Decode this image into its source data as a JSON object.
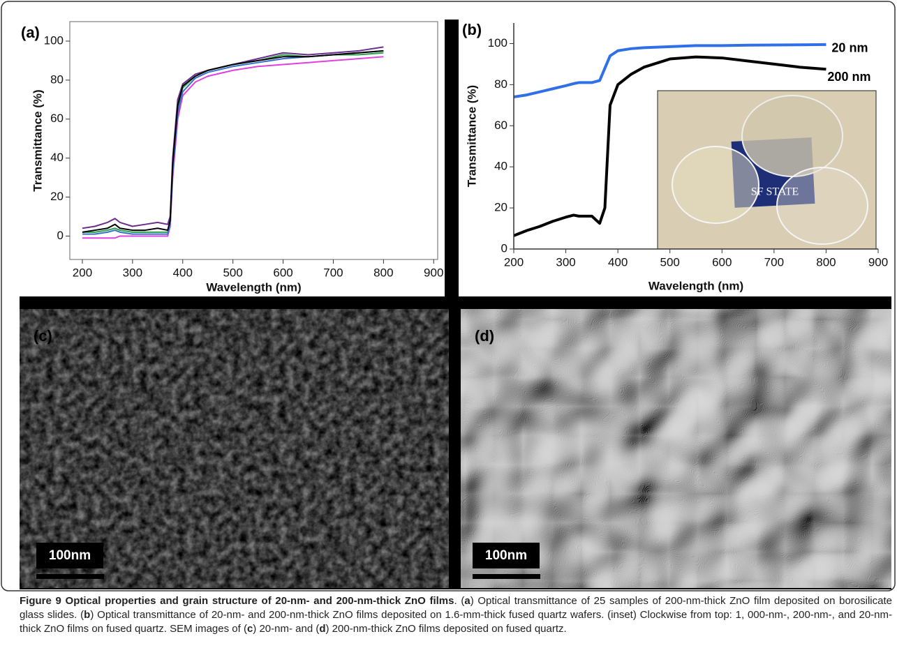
{
  "chart_data": [
    {
      "type": "line",
      "label": "(a)",
      "x_label": "Wavelength (nm)",
      "y_label": "Transmittance (%)",
      "xlim": [
        175,
        908
      ],
      "ylim": [
        -12,
        110
      ],
      "xticks": [
        200,
        300,
        400,
        500,
        600,
        700,
        800,
        900
      ],
      "yticks": [
        0,
        20,
        40,
        60,
        80,
        100
      ],
      "x": [
        200,
        225,
        250,
        265,
        275,
        300,
        325,
        350,
        370,
        375,
        380,
        390,
        400,
        425,
        450,
        500,
        550,
        600,
        650,
        700,
        750,
        800
      ],
      "series": [
        {
          "color": "#6b2e8e",
          "values": [
            4,
            5,
            7,
            9,
            7,
            5,
            6,
            7,
            6,
            10,
            40,
            70,
            78,
            83,
            85,
            88,
            91,
            94,
            93,
            94,
            95,
            97
          ]
        },
        {
          "color": "#e040e0",
          "values": [
            -1,
            -1,
            -1,
            -1,
            0,
            0,
            0,
            0,
            0,
            5,
            30,
            60,
            72,
            79,
            82,
            85,
            87,
            88,
            89,
            90,
            91,
            92
          ]
        },
        {
          "color": "#2ea04a",
          "values": [
            2,
            2,
            3,
            4,
            3,
            2,
            2,
            2,
            2,
            7,
            35,
            65,
            76,
            82,
            85,
            88,
            90,
            93,
            92,
            93,
            93,
            94
          ]
        },
        {
          "color": "#3a70c8",
          "values": [
            1,
            1,
            2,
            3,
            2,
            1,
            1,
            1,
            1,
            6,
            33,
            63,
            74,
            81,
            84,
            87,
            89,
            91,
            92,
            93,
            94,
            95
          ]
        },
        {
          "color": "#000000",
          "values": [
            2,
            3,
            4,
            6,
            4,
            3,
            3,
            4,
            3,
            8,
            37,
            67,
            77,
            82,
            85,
            88,
            90,
            92,
            92,
            93,
            94,
            95
          ]
        }
      ]
    },
    {
      "type": "line",
      "label": "(b)",
      "x_label": "Wavelength (nm)",
      "y_label": "Transmittance (%)",
      "xlim": [
        200,
        900
      ],
      "ylim": [
        0,
        110
      ],
      "xticks": [
        200,
        300,
        400,
        500,
        600,
        700,
        800,
        900
      ],
      "yticks": [
        0,
        20,
        40,
        60,
        80,
        100
      ],
      "x": [
        200,
        225,
        250,
        275,
        300,
        315,
        325,
        350,
        365,
        375,
        385,
        400,
        425,
        450,
        500,
        550,
        600,
        650,
        700,
        750,
        800
      ],
      "series": [
        {
          "name": "20 nm",
          "color": "#2f6fe8",
          "values": [
            74,
            75,
            76.5,
            78,
            79.5,
            80.5,
            81,
            81,
            82,
            88,
            94,
            96.5,
            97.5,
            98,
            98.5,
            99,
            99,
            99.2,
            99.3,
            99.4,
            99.5
          ]
        },
        {
          "name": "200 nm",
          "color": "#000000",
          "values": [
            6.5,
            9,
            11,
            13.5,
            15.5,
            16.5,
            16,
            16,
            12.5,
            20,
            70,
            80,
            85,
            88.5,
            92.5,
            93.5,
            93,
            91.5,
            90,
            88.5,
            87.5
          ]
        }
      ],
      "inset_text": "SF STATE"
    }
  ],
  "panels": [
    {
      "label": "(c)",
      "scale_bar": "100nm"
    },
    {
      "label": "(d)",
      "scale_bar": "100nm"
    }
  ],
  "caption": {
    "segments": [
      "Figure 9 Optical properties and grain structure of 20-nm- and 200-nm-thick ZnO films",
      ". (",
      "a",
      ") Optical transmittance of 25 samples of 200-nm-thick ZnO film deposited on borosilicate glass slides. (",
      "b",
      ") Optical transmittance of 20-nm- and 200-nm-thick ZnO films deposited on 1.6-mm-thick fused quartz wafers. (inset) Clockwise from top: 1, 000-nm-, 200-nm-, and 20-nm-thick ZnO films on fused quartz. SEM images of (",
      "c",
      ") 20-nm- and (",
      "d",
      ") 200-nm-thick ZnO films deposited on fused quartz."
    ]
  }
}
